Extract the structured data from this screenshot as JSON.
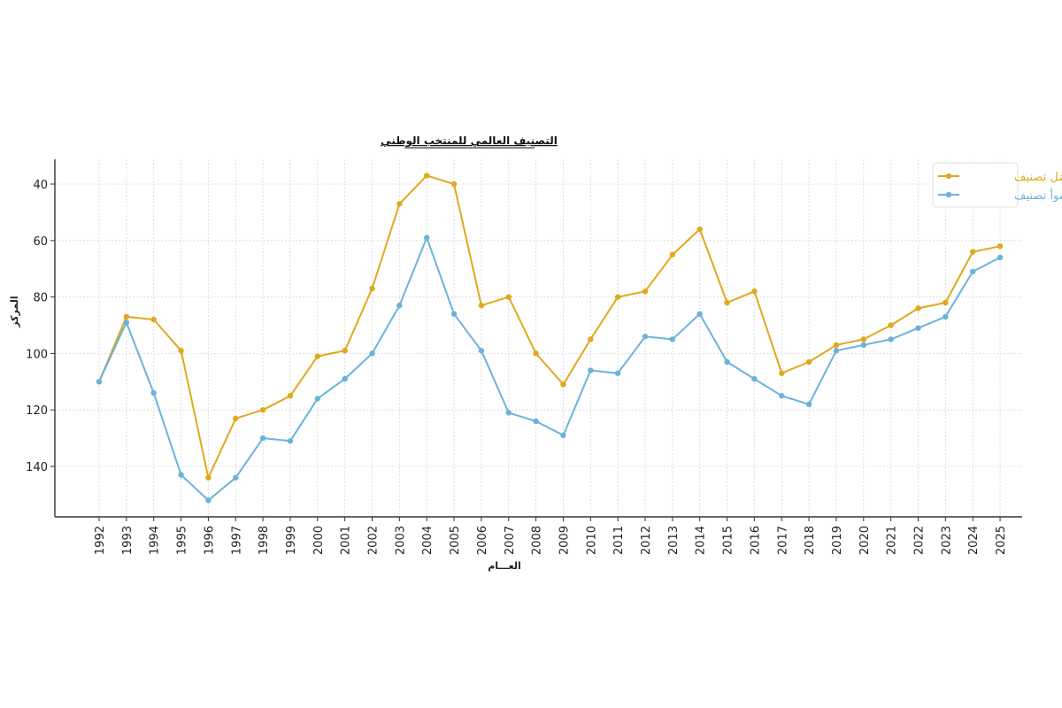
{
  "chart_data": {
    "type": "line",
    "title": "التصنيف العالمي للمنتخب الوطني",
    "xlabel": "العـــام",
    "ylabel": "المركز",
    "ylim": [
      153,
      31
    ],
    "y_inverted": true,
    "yticks": [
      40,
      60,
      80,
      100,
      120,
      140
    ],
    "grid": true,
    "legend_position": "top-right",
    "x": [
      1992,
      1993,
      1994,
      1995,
      1996,
      1997,
      1998,
      1999,
      2000,
      2001,
      2002,
      2003,
      2004,
      2005,
      2006,
      2007,
      2008,
      2009,
      2010,
      2011,
      2012,
      2013,
      2014,
      2015,
      2016,
      2017,
      2018,
      2019,
      2020,
      2021,
      2022,
      2023,
      2024,
      2025
    ],
    "series": [
      {
        "name": "أفضل تصنيف",
        "color": "#E0A91B",
        "values": [
          110,
          87,
          88,
          99,
          144,
          123,
          120,
          115,
          101,
          99,
          77,
          47,
          37,
          40,
          83,
          80,
          100,
          111,
          95,
          80,
          78,
          65,
          56,
          82,
          78,
          107,
          103,
          97,
          95,
          90,
          84,
          82,
          64,
          62
        ]
      },
      {
        "name": "أسوأ تصنيف",
        "color": "#6BB3DB",
        "values": [
          110,
          89,
          114,
          143,
          152,
          144,
          130,
          131,
          116,
          109,
          100,
          83,
          59,
          86,
          99,
          121,
          124,
          129,
          106,
          107,
          94,
          95,
          86,
          103,
          109,
          115,
          118,
          99,
          97,
          95,
          91,
          87,
          71,
          66
        ]
      }
    ]
  }
}
